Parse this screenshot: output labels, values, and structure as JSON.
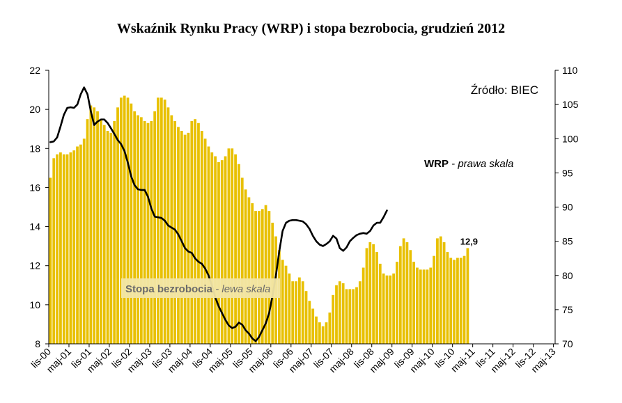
{
  "chart_data": {
    "type": "bar+line",
    "title": "Wskaźnik Rynku Pracy (WRP) i stopa bezrobocia, grudzień 2012",
    "source": "Źródło: BIEC",
    "x_tick_labels": [
      "lis-00",
      "maj-01",
      "lis-01",
      "maj-02",
      "lis-02",
      "maj-03",
      "lis-03",
      "maj-04",
      "lis-04",
      "maj-05",
      "lis-05",
      "maj-06",
      "lis-06",
      "maj-07",
      "lis-07",
      "maj-08",
      "lis-08",
      "maj-09",
      "lis-09",
      "maj-10",
      "lis-10",
      "maj-11",
      "lis-11",
      "maj-12",
      "lis-12",
      "maj-13"
    ],
    "y_left": {
      "min": 8,
      "max": 22,
      "ticks": [
        8,
        10,
        12,
        14,
        16,
        18,
        20,
        22
      ]
    },
    "y_right": {
      "min": 70,
      "max": 110,
      "ticks": [
        70,
        75,
        80,
        85,
        90,
        95,
        100,
        105,
        110
      ]
    },
    "bar_color": "#E8C000",
    "line_color": "#000000",
    "series": [
      {
        "name": "Stopa bezrobocia",
        "name_suffix": " - lewa skala",
        "axis": "left",
        "kind": "bar",
        "start": "2000-11",
        "values": [
          16.5,
          17.5,
          17.7,
          17.8,
          17.7,
          17.7,
          17.8,
          17.9,
          18.1,
          18.2,
          18.5,
          19.5,
          20.2,
          20.1,
          19.9,
          19.5,
          19.2,
          18.9,
          18.8,
          19.4,
          20.1,
          20.6,
          20.7,
          20.6,
          20.3,
          19.9,
          19.7,
          19.6,
          19.4,
          19.3,
          19.4,
          19.9,
          20.6,
          20.6,
          20.5,
          20.1,
          19.7,
          19.4,
          19.1,
          18.9,
          18.7,
          18.8,
          19.4,
          19.5,
          19.3,
          18.9,
          18.5,
          18.1,
          17.8,
          17.6,
          17.3,
          17.4,
          17.6,
          18.0,
          18.0,
          17.7,
          17.2,
          16.5,
          15.9,
          15.5,
          15.2,
          14.8,
          14.8,
          14.9,
          15.1,
          14.8,
          14.2,
          13.5,
          12.8,
          12.3,
          12.0,
          11.6,
          11.2,
          11.2,
          11.4,
          11.2,
          10.7,
          10.2,
          9.8,
          9.4,
          9.1,
          8.9,
          9.1,
          9.6,
          10.5,
          11.0,
          11.2,
          11.1,
          10.8,
          10.8,
          10.8,
          10.9,
          11.2,
          11.9,
          12.9,
          13.2,
          13.1,
          12.7,
          12.1,
          11.6,
          11.5,
          11.5,
          11.6,
          12.2,
          13.0,
          13.4,
          13.2,
          12.8,
          12.2,
          11.9,
          11.8,
          11.8,
          11.8,
          11.9,
          12.5,
          13.4,
          13.5,
          13.2,
          12.7,
          12.4,
          12.3,
          12.4,
          12.4,
          12.5,
          12.9
        ]
      },
      {
        "name": "WRP",
        "name_suffix": " - prawa skala",
        "axis": "right",
        "kind": "line",
        "start": "2000-11",
        "values": [
          99.5,
          99.6,
          100.2,
          101.8,
          103.5,
          104.5,
          104.6,
          104.5,
          105.0,
          106.5,
          107.5,
          106.5,
          104.0,
          102.0,
          102.5,
          102.8,
          102.8,
          102.3,
          101.5,
          100.7,
          99.8,
          99.2,
          98.2,
          96.5,
          94.5,
          93.2,
          92.6,
          92.5,
          92.5,
          91.5,
          89.8,
          88.6,
          88.5,
          88.4,
          88.0,
          87.3,
          87.0,
          86.7,
          86.0,
          85.0,
          84.0,
          83.5,
          83.3,
          82.5,
          82.0,
          81.7,
          81.0,
          80.0,
          78.5,
          76.8,
          75.5,
          74.5,
          73.5,
          72.7,
          72.3,
          72.5,
          73.1,
          72.8,
          72.0,
          71.5,
          70.8,
          70.4,
          71.0,
          72.0,
          73.0,
          74.5,
          77.0,
          80.0,
          83.5,
          86.5,
          87.7,
          88.0,
          88.1,
          88.1,
          88.0,
          87.9,
          87.5,
          86.8,
          85.8,
          85.0,
          84.5,
          84.3,
          84.6,
          85.0,
          85.8,
          85.4,
          84.0,
          83.6,
          84.1,
          85.0,
          85.5,
          85.9,
          86.1,
          86.2,
          86.1,
          86.5,
          87.3,
          87.7,
          87.7,
          88.5,
          89.5
        ]
      }
    ],
    "annotations": {
      "last_bar_value": "12,9",
      "wrp_label_bold": "WRP",
      "wrp_label_italic": " - prawa skala",
      "stopa_label_bold": "Stopa bezrobocia",
      "stopa_label_italic": " - lewa skala"
    },
    "grid": false,
    "legend": "none"
  }
}
